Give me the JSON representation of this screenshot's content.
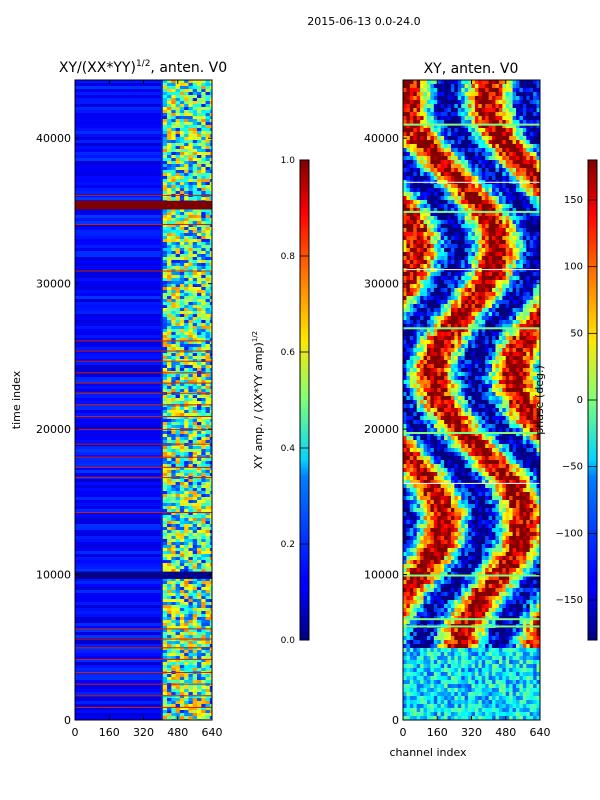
{
  "chart_data": [
    {
      "type": "heatmap",
      "suptitle": "2015-06-13 0.0-24.0",
      "title": "XY/(XX*YY)",
      "title_sup": "1/2",
      "title_suffix": ", anten. V0",
      "xlabel": "",
      "ylabel": "time index",
      "xlim": [
        0,
        640
      ],
      "ylim": [
        0,
        44000
      ],
      "xticks": [
        0,
        160,
        320,
        480,
        640
      ],
      "yticks": [
        0,
        10000,
        20000,
        30000,
        40000
      ],
      "band_rows_time_index": [
        900,
        1700,
        2500,
        3300,
        4200,
        5000,
        5600,
        6300,
        14300,
        16700,
        17400,
        18100,
        19000,
        20000,
        20900,
        21700,
        22500,
        23200,
        23900,
        24700,
        25400,
        26100,
        30900,
        34100,
        35400,
        36100
      ],
      "colorbar": {
        "label": "XY amp. / (XX*YY amp)",
        "label_sup": "1/2",
        "range": [
          0.0,
          1.0
        ],
        "ticks": [
          "0.0",
          "0.2",
          "0.4",
          "0.6",
          "0.8",
          "1.0"
        ]
      }
    },
    {
      "type": "heatmap",
      "title": "XY, anten. V0",
      "xlabel": "channel index",
      "ylabel": "",
      "xlim": [
        0,
        640
      ],
      "ylim": [
        0,
        44000
      ],
      "xticks": [
        0,
        160,
        320,
        480,
        640
      ],
      "yticks": [
        0,
        10000,
        20000,
        30000,
        40000
      ],
      "colorbar": {
        "label": "phase (deg.)",
        "range": [
          -180,
          180
        ],
        "ticks": [
          "150",
          "100",
          "50",
          "0",
          "−50",
          "−100",
          "−150"
        ],
        "tick_values": [
          150,
          100,
          50,
          0,
          -50,
          -100,
          -150
        ]
      }
    }
  ],
  "colors": {
    "jet_low": "#00007f",
    "jet_high": "#7f0000",
    "flag_row": "#cc2200"
  }
}
